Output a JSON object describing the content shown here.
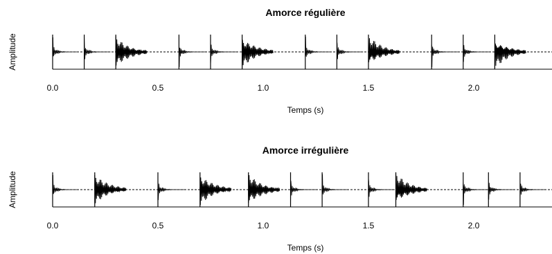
{
  "chart_data": [
    {
      "type": "line",
      "title": "Amorce régulière",
      "xlabel": "Temps (s)",
      "ylabel": "Amplitude",
      "xlim": [
        -0.02,
        2.4
      ],
      "xticks": [
        "0.0",
        "0.5",
        "1.0",
        "1.5",
        "2.0"
      ],
      "xtick_values": [
        0.0,
        0.5,
        1.0,
        1.5,
        2.0
      ],
      "baseline": "dashed",
      "grid": false,
      "series": [
        {
          "onsets": [
            {
              "t": 0.0,
              "strength": "weak"
            },
            {
              "t": 0.15,
              "strength": "weak"
            },
            {
              "t": 0.3,
              "strength": "strong"
            },
            {
              "t": 0.6,
              "strength": "weak"
            },
            {
              "t": 0.75,
              "strength": "weak"
            },
            {
              "t": 0.9,
              "strength": "strong"
            },
            {
              "t": 1.2,
              "strength": "weak"
            },
            {
              "t": 1.35,
              "strength": "weak"
            },
            {
              "t": 1.5,
              "strength": "strong"
            },
            {
              "t": 1.8,
              "strength": "weak"
            },
            {
              "t": 1.95,
              "strength": "weak"
            },
            {
              "t": 2.1,
              "strength": "strong"
            }
          ]
        }
      ]
    },
    {
      "type": "line",
      "title": "Amorce irrégulière",
      "xlabel": "Temps (s)",
      "ylabel": "Amplitude",
      "xlim": [
        -0.02,
        2.4
      ],
      "xticks": [
        "0.0",
        "0.5",
        "1.0",
        "1.5",
        "2.0"
      ],
      "xtick_values": [
        0.0,
        0.5,
        1.0,
        1.5,
        2.0
      ],
      "baseline": "dashed",
      "grid": false,
      "series": [
        {
          "onsets": [
            {
              "t": 0.0,
              "strength": "weak"
            },
            {
              "t": 0.2,
              "strength": "strong"
            },
            {
              "t": 0.5,
              "strength": "weak"
            },
            {
              "t": 0.7,
              "strength": "strong"
            },
            {
              "t": 0.93,
              "strength": "strong"
            },
            {
              "t": 1.13,
              "strength": "weak"
            },
            {
              "t": 1.28,
              "strength": "weak"
            },
            {
              "t": 1.5,
              "strength": "weak"
            },
            {
              "t": 1.63,
              "strength": "strong"
            },
            {
              "t": 1.95,
              "strength": "weak"
            },
            {
              "t": 2.07,
              "strength": "weak"
            },
            {
              "t": 2.22,
              "strength": "weak"
            }
          ]
        }
      ]
    }
  ]
}
